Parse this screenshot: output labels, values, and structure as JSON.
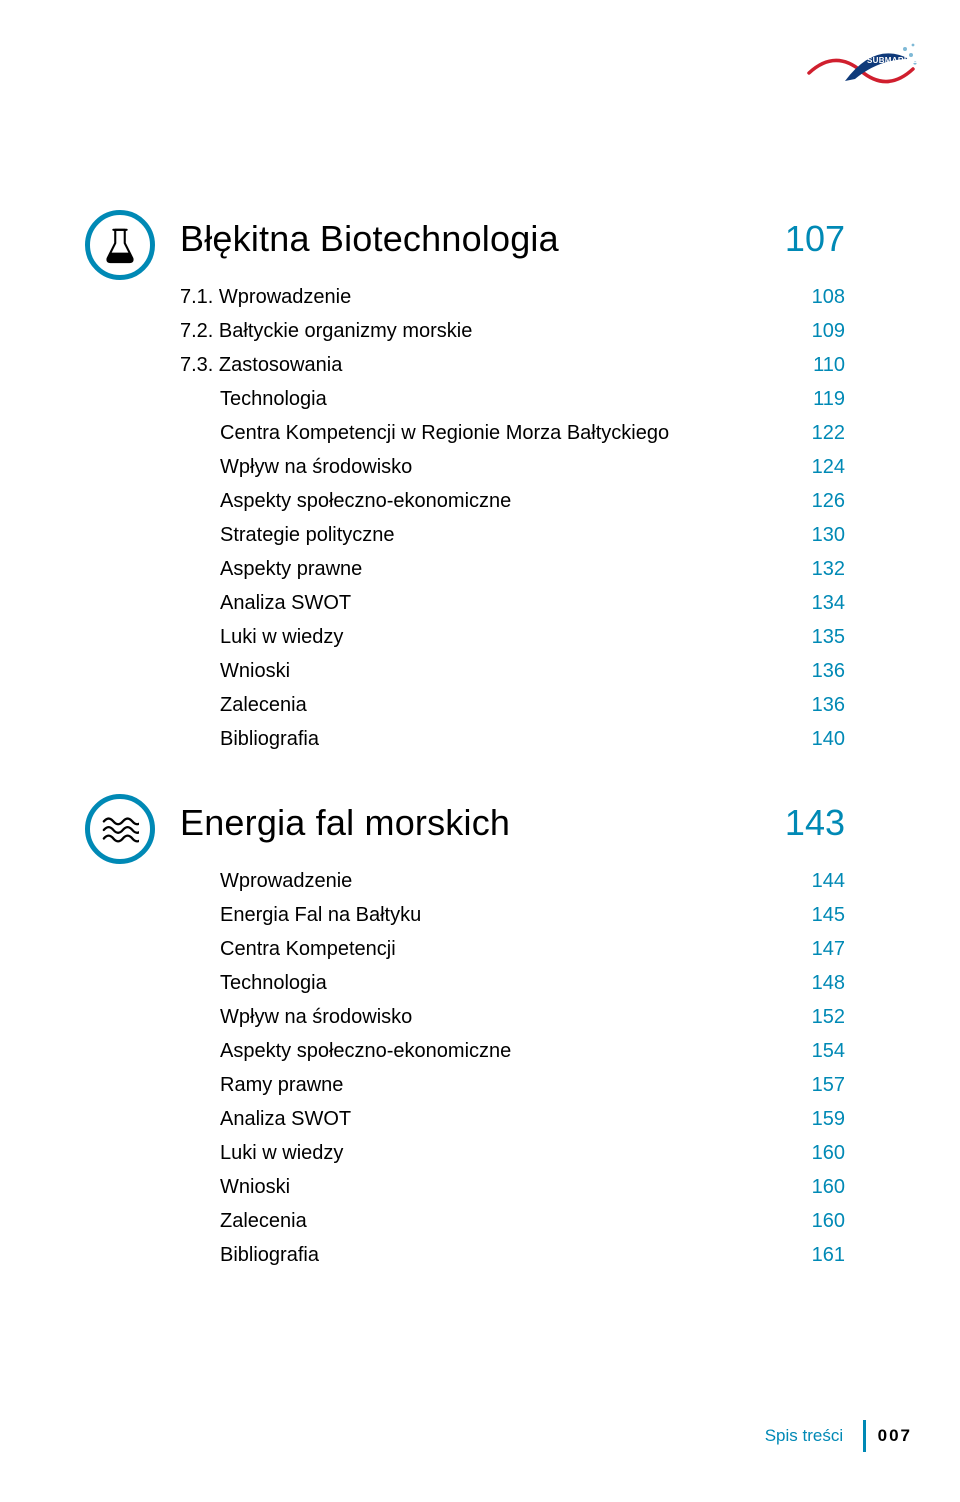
{
  "logo": {
    "text": "SUBMARINER",
    "wave_stroke": "#d01f2e",
    "sail_fill": "#0f3a7a",
    "dots_color": "#7fb9d6",
    "label_color": "#ffffff"
  },
  "colors": {
    "accent": "#0089b5",
    "text": "#000000",
    "icon_ring": "#0089b5",
    "icon_fill": "#000000"
  },
  "sections": [
    {
      "id": "biotech",
      "icon": "flask",
      "title": "Błękitna Biotechnologia",
      "page": "107",
      "items": [
        {
          "label": "7.1. Wprowadzenie",
          "page": "108",
          "indent": false
        },
        {
          "label": "7.2. Bałtyckie organizmy morskie",
          "page": "109",
          "indent": false
        },
        {
          "label": "7.3. Zastosowania",
          "page": "110",
          "indent": false
        },
        {
          "label": "Technologia",
          "page": "119",
          "indent": true
        },
        {
          "label": "Centra Kompetencji w Regionie Morza Bałtyckiego",
          "page": "122",
          "indent": true
        },
        {
          "label": "Wpływ na środowisko",
          "page": "124",
          "indent": true
        },
        {
          "label": "Aspekty społeczno-ekonomiczne",
          "page": "126",
          "indent": true
        },
        {
          "label": "Strategie polityczne",
          "page": "130",
          "indent": true
        },
        {
          "label": "Aspekty prawne",
          "page": "132",
          "indent": true
        },
        {
          "label": "Analiza SWOT",
          "page": "134",
          "indent": true
        },
        {
          "label": "Luki w wiedzy",
          "page": "135",
          "indent": true
        },
        {
          "label": "Wnioski",
          "page": "136",
          "indent": true
        },
        {
          "label": "Zalecenia",
          "page": "136",
          "indent": true
        },
        {
          "label": "Bibliografia",
          "page": "140",
          "indent": true
        }
      ]
    },
    {
      "id": "waves",
      "icon": "waves",
      "title": "Energia fal morskich",
      "page": "143",
      "items": [
        {
          "label": "Wprowadzenie",
          "page": "144",
          "indent": true
        },
        {
          "label": "Energia Fal na Bałtyku",
          "page": "145",
          "indent": true
        },
        {
          "label": "Centra Kompetencji",
          "page": "147",
          "indent": true
        },
        {
          "label": "Technologia",
          "page": "148",
          "indent": true
        },
        {
          "label": "Wpływ na środowisko",
          "page": "152",
          "indent": true
        },
        {
          "label": "Aspekty społeczno-ekonomiczne",
          "page": "154",
          "indent": true
        },
        {
          "label": "Ramy prawne",
          "page": "157",
          "indent": true
        },
        {
          "label": "Analiza SWOT",
          "page": "159",
          "indent": true
        },
        {
          "label": "Luki w wiedzy",
          "page": "160",
          "indent": true
        },
        {
          "label": "Wnioski",
          "page": "160",
          "indent": true
        },
        {
          "label": "Zalecenia",
          "page": "160",
          "indent": true
        },
        {
          "label": "Bibliografia",
          "page": "161",
          "indent": true
        }
      ]
    }
  ],
  "footer": {
    "label": "Spis treści",
    "page": "007"
  }
}
